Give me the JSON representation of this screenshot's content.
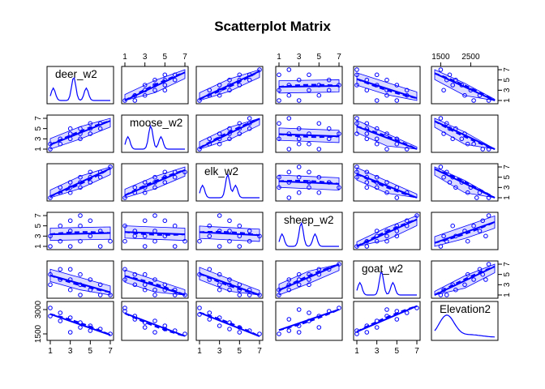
{
  "chart_data": {
    "type": "scatter",
    "subtype": "scatterplot-matrix",
    "title": "Scatterplot Matrix",
    "variables": [
      "deer_w2",
      "moose_w2",
      "elk_w2",
      "sheep_w2",
      "goat_w2",
      "Elevation2"
    ],
    "ranges": {
      "deer_w2": [
        1,
        7
      ],
      "moose_w2": [
        1,
        7
      ],
      "elk_w2": [
        1,
        7
      ],
      "sheep_w2": [
        1,
        7
      ],
      "goat_w2": [
        1,
        7
      ],
      "Elevation2": [
        1300,
        3300
      ]
    },
    "ticks": {
      "deer_w2": [
        "1",
        "3",
        "5",
        "7"
      ],
      "moose_w2": [
        "1",
        "3",
        "5",
        "7"
      ],
      "elk_w2": [
        "1",
        "3",
        "5",
        "7"
      ],
      "sheep_w2": [
        "1",
        "3",
        "5",
        "7"
      ],
      "goat_w2": [
        "1",
        "3",
        "5",
        "7"
      ],
      "Elevation2_top": [
        "1500",
        "2500"
      ],
      "Elevation2_left": [
        "1500",
        "3000"
      ],
      "Elevation2_right": [
        "1",
        "3",
        "5",
        "7"
      ]
    },
    "ordinal_levels": [
      1,
      2,
      3,
      4,
      5,
      6,
      7
    ],
    "point_color": "#0000ff",
    "regression_lines": "linear fit (solid) with smooth (dashed) and confidence band",
    "diagonal": "density curves with rug",
    "pairs": {
      "deer_w2_vs_moose_w2": [
        [
          1,
          1
        ],
        [
          1,
          2
        ],
        [
          2,
          2
        ],
        [
          3,
          3
        ],
        [
          3,
          4
        ],
        [
          4,
          3
        ],
        [
          4,
          4
        ],
        [
          4,
          5
        ],
        [
          5,
          4
        ],
        [
          5,
          5
        ],
        [
          6,
          5
        ],
        [
          3,
          5
        ],
        [
          2,
          3
        ],
        [
          5,
          6
        ],
        [
          6,
          6
        ]
      ],
      "deer_w2_vs_elk_w2": [
        [
          1,
          1
        ],
        [
          2,
          2
        ],
        [
          3,
          3
        ],
        [
          3,
          4
        ],
        [
          4,
          3
        ],
        [
          4,
          4
        ],
        [
          4,
          5
        ],
        [
          5,
          4
        ],
        [
          5,
          5
        ],
        [
          5,
          6
        ],
        [
          6,
          5
        ],
        [
          6,
          6
        ],
        [
          7,
          7
        ],
        [
          2,
          3
        ],
        [
          3,
          2
        ]
      ],
      "deer_w2_vs_sheep_w2": [
        [
          1,
          1
        ],
        [
          1,
          3
        ],
        [
          2,
          2
        ],
        [
          3,
          1
        ],
        [
          3,
          4
        ],
        [
          4,
          2
        ],
        [
          4,
          5
        ],
        [
          5,
          3
        ],
        [
          5,
          6
        ],
        [
          6,
          1
        ],
        [
          6,
          4
        ],
        [
          3,
          6
        ],
        [
          4,
          7
        ],
        [
          7,
          2
        ],
        [
          2,
          5
        ]
      ],
      "deer_w2_vs_goat_w2": [
        [
          1,
          3
        ],
        [
          1,
          5
        ],
        [
          2,
          4
        ],
        [
          3,
          2
        ],
        [
          3,
          6
        ],
        [
          4,
          3
        ],
        [
          4,
          1
        ],
        [
          5,
          2
        ],
        [
          5,
          4
        ],
        [
          6,
          1
        ],
        [
          6,
          3
        ],
        [
          7,
          1
        ],
        [
          2,
          6
        ],
        [
          3,
          4
        ],
        [
          4,
          5
        ]
      ],
      "moose_w2_vs_elk_w2": [
        [
          1,
          1
        ],
        [
          2,
          2
        ],
        [
          2,
          3
        ],
        [
          3,
          3
        ],
        [
          3,
          4
        ],
        [
          4,
          3
        ],
        [
          4,
          4
        ],
        [
          4,
          5
        ],
        [
          5,
          4
        ],
        [
          5,
          5
        ],
        [
          6,
          5
        ],
        [
          6,
          6
        ],
        [
          7,
          6
        ],
        [
          3,
          2
        ],
        [
          5,
          6
        ]
      ],
      "moose_w2_vs_sheep_w2": [
        [
          1,
          2
        ],
        [
          1,
          5
        ],
        [
          2,
          3
        ],
        [
          3,
          1
        ],
        [
          3,
          6
        ],
        [
          4,
          2
        ],
        [
          4,
          4
        ],
        [
          5,
          3
        ],
        [
          5,
          6
        ],
        [
          6,
          1
        ],
        [
          6,
          5
        ],
        [
          7,
          2
        ],
        [
          2,
          4
        ],
        [
          4,
          7
        ],
        [
          3,
          3
        ]
      ],
      "moose_w2_vs_goat_w2": [
        [
          1,
          4
        ],
        [
          1,
          6
        ],
        [
          2,
          3
        ],
        [
          3,
          2
        ],
        [
          3,
          5
        ],
        [
          4,
          1
        ],
        [
          4,
          4
        ],
        [
          5,
          2
        ],
        [
          5,
          3
        ],
        [
          6,
          1
        ],
        [
          6,
          2
        ],
        [
          7,
          1
        ],
        [
          2,
          5
        ],
        [
          3,
          3
        ],
        [
          4,
          2
        ]
      ],
      "elk_w2_vs_sheep_w2": [
        [
          1,
          2
        ],
        [
          2,
          3
        ],
        [
          2,
          5
        ],
        [
          3,
          1
        ],
        [
          3,
          4
        ],
        [
          4,
          2
        ],
        [
          4,
          6
        ],
        [
          5,
          3
        ],
        [
          5,
          5
        ],
        [
          6,
          2
        ],
        [
          6,
          4
        ],
        [
          7,
          3
        ],
        [
          3,
          7
        ],
        [
          4,
          4
        ],
        [
          5,
          1
        ]
      ],
      "elk_w2_vs_goat_w2": [
        [
          1,
          5
        ],
        [
          2,
          4
        ],
        [
          2,
          6
        ],
        [
          3,
          3
        ],
        [
          3,
          5
        ],
        [
          4,
          2
        ],
        [
          4,
          4
        ],
        [
          5,
          1
        ],
        [
          5,
          3
        ],
        [
          6,
          2
        ],
        [
          6,
          1
        ],
        [
          7,
          1
        ],
        [
          3,
          2
        ],
        [
          4,
          3
        ],
        [
          5,
          2
        ]
      ],
      "sheep_w2_vs_goat_w2": [
        [
          1,
          1
        ],
        [
          1,
          2
        ],
        [
          2,
          2
        ],
        [
          2,
          3
        ],
        [
          3,
          3
        ],
        [
          3,
          4
        ],
        [
          4,
          4
        ],
        [
          4,
          5
        ],
        [
          5,
          5
        ],
        [
          5,
          6
        ],
        [
          6,
          6
        ],
        [
          7,
          7
        ],
        [
          2,
          4
        ],
        [
          3,
          5
        ],
        [
          4,
          3
        ]
      ],
      "Elevation2_vs_deer_w2": [
        [
          1500,
          7
        ],
        [
          1800,
          6
        ],
        [
          2000,
          5
        ],
        [
          2200,
          4
        ],
        [
          2500,
          3
        ],
        [
          2800,
          2
        ],
        [
          3100,
          1
        ],
        [
          1600,
          3
        ],
        [
          1900,
          4
        ],
        [
          2300,
          2
        ],
        [
          2600,
          1
        ],
        [
          1700,
          5
        ]
      ],
      "Elevation2_vs_moose_w2": [
        [
          1500,
          7
        ],
        [
          1700,
          6
        ],
        [
          2000,
          5
        ],
        [
          2300,
          4
        ],
        [
          2600,
          2
        ],
        [
          2900,
          1
        ],
        [
          3100,
          1
        ],
        [
          1600,
          4
        ],
        [
          1900,
          3
        ],
        [
          2400,
          2
        ],
        [
          1800,
          5
        ],
        [
          2200,
          3
        ]
      ],
      "Elevation2_vs_elk_w2": [
        [
          1500,
          7
        ],
        [
          1700,
          6
        ],
        [
          1900,
          5
        ],
        [
          2200,
          4
        ],
        [
          2500,
          3
        ],
        [
          2800,
          2
        ],
        [
          3100,
          1
        ],
        [
          1600,
          5
        ],
        [
          2000,
          3
        ],
        [
          2400,
          2
        ],
        [
          2700,
          1
        ],
        [
          1800,
          4
        ]
      ],
      "Elevation2_vs_sheep_w2": [
        [
          1500,
          1
        ],
        [
          1700,
          2
        ],
        [
          2000,
          3
        ],
        [
          2300,
          4
        ],
        [
          2600,
          5
        ],
        [
          2900,
          6
        ],
        [
          3100,
          7
        ],
        [
          1600,
          3
        ],
        [
          1900,
          5
        ],
        [
          2400,
          2
        ],
        [
          2800,
          4
        ],
        [
          3000,
          3
        ]
      ],
      "Elevation2_vs_goat_w2": [
        [
          1500,
          1
        ],
        [
          1700,
          1
        ],
        [
          2000,
          2
        ],
        [
          2300,
          3
        ],
        [
          2600,
          4
        ],
        [
          2900,
          5
        ],
        [
          3100,
          7
        ],
        [
          1600,
          2
        ],
        [
          1900,
          3
        ],
        [
          2400,
          5
        ],
        [
          2800,
          6
        ],
        [
          3000,
          4
        ]
      ]
    }
  }
}
